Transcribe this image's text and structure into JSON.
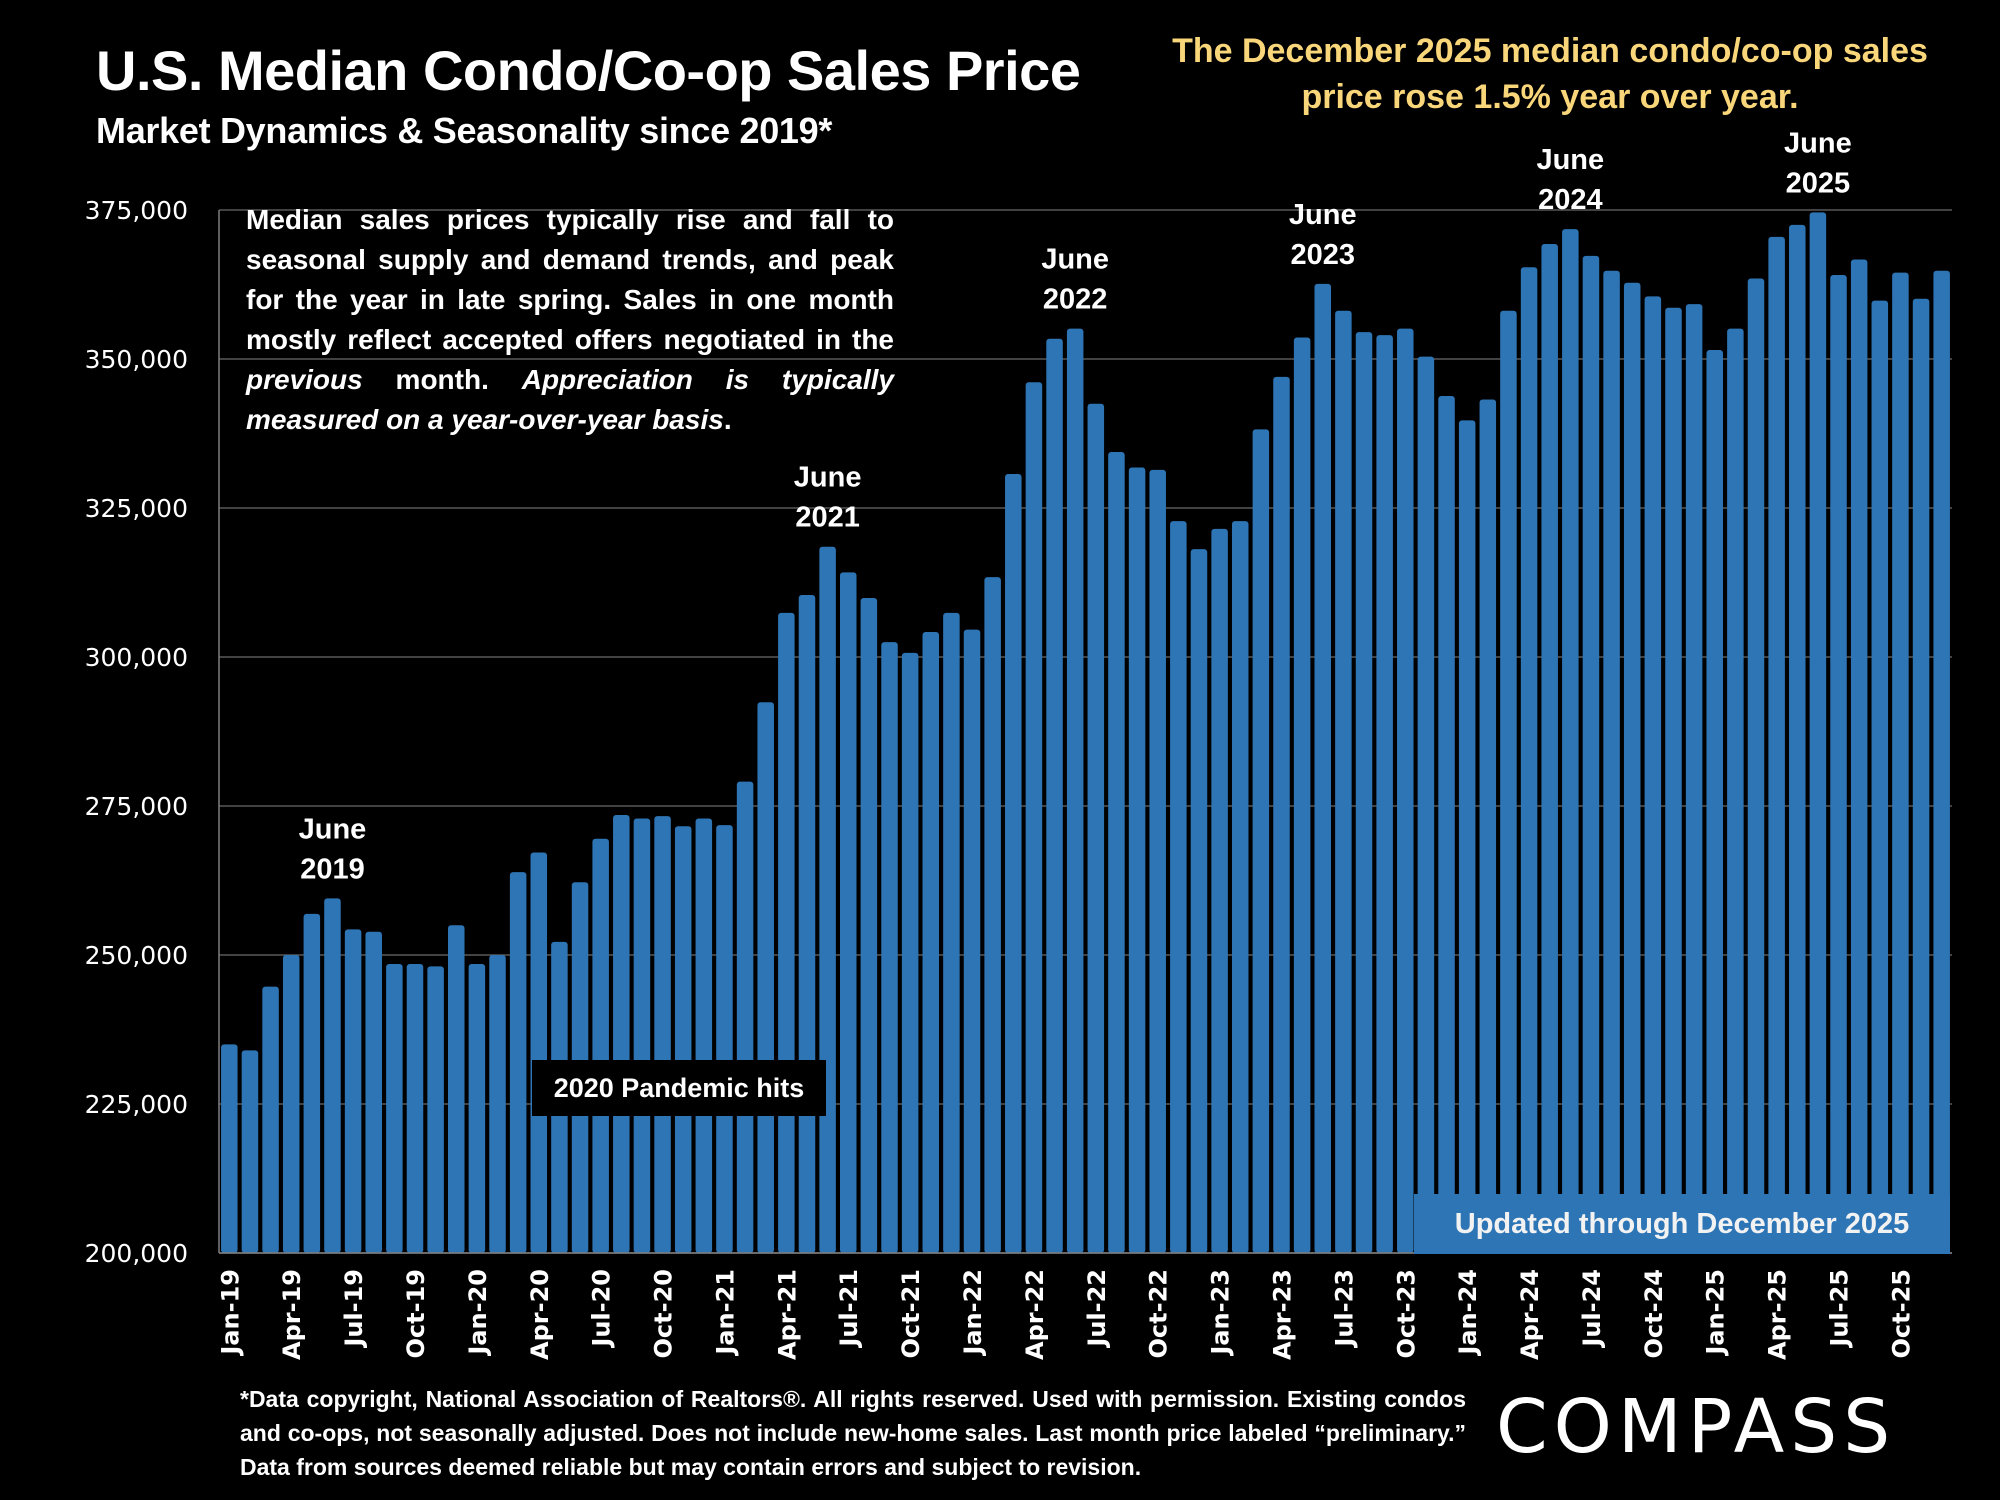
{
  "header": {
    "title": "U.S. Median Condo/Co-op Sales Price",
    "subtitle": "Market Dynamics & Seasonality since 2019*",
    "headline": "The December 2025 median condo/co-op sales price rose 1.5% year over year."
  },
  "explainer": {
    "part1": "Median sales prices typically rise and fall to seasonal supply and demand trends, and peak for the year in late spring. Sales in one month mostly reflect accepted offers negotiated in the ",
    "italic1": "previous",
    "part2": " month. ",
    "italic2": "Appreciation is typically measured on a year-over-year basis",
    "part3": "."
  },
  "callouts": {
    "pandemic": "2020 Pandemic hits",
    "updated": "Updated through December 2025"
  },
  "footnote": "*Data copyright, National Association of Realtors®. All rights reserved. Used with permission. Existing condos and co-ops, not seasonally adjusted. Does not include new-home sales. Last month price labeled “preliminary.” Data from sources deemed reliable but may contain errors and subject to revision.",
  "brand": {
    "logo_text": "COMPASS"
  },
  "colors": {
    "bar": "#2e75b6",
    "headline": "#f9d67a",
    "background": "#000000",
    "grid": "#595959"
  },
  "chart_data": {
    "type": "bar",
    "title": "U.S. Median Condo/Co-op Sales Price",
    "xlabel": "",
    "ylabel": "",
    "ylim": [
      200000,
      375000
    ],
    "yticks": [
      200000,
      225000,
      250000,
      275000,
      300000,
      325000,
      350000,
      375000
    ],
    "ytick_labels": [
      "200,000",
      "225,000",
      "250,000",
      "275,000",
      "300,000",
      "325,000",
      "350,000",
      "375,000"
    ],
    "grid": true,
    "categories": [
      "Jan-19",
      "Feb-19",
      "Mar-19",
      "Apr-19",
      "May-19",
      "Jun-19",
      "Jul-19",
      "Aug-19",
      "Sep-19",
      "Oct-19",
      "Nov-19",
      "Dec-19",
      "Jan-20",
      "Feb-20",
      "Mar-20",
      "Apr-20",
      "May-20",
      "Jun-20",
      "Jul-20",
      "Aug-20",
      "Sep-20",
      "Oct-20",
      "Nov-20",
      "Dec-20",
      "Jan-21",
      "Feb-21",
      "Mar-21",
      "Apr-21",
      "May-21",
      "Jun-21",
      "Jul-21",
      "Aug-21",
      "Sep-21",
      "Oct-21",
      "Nov-21",
      "Dec-21",
      "Jan-22",
      "Feb-22",
      "Mar-22",
      "Apr-22",
      "May-22",
      "Jun-22",
      "Jul-22",
      "Aug-22",
      "Sep-22",
      "Oct-22",
      "Nov-22",
      "Dec-22",
      "Jan-23",
      "Feb-23",
      "Mar-23",
      "Apr-23",
      "May-23",
      "Jun-23",
      "Jul-23",
      "Aug-23",
      "Sep-23",
      "Oct-23",
      "Nov-23",
      "Dec-23",
      "Jan-24",
      "Feb-24",
      "Mar-24",
      "Apr-24",
      "May-24",
      "Jun-24",
      "Jul-24",
      "Aug-24",
      "Sep-24",
      "Oct-24",
      "Nov-24",
      "Dec-24",
      "Jan-25",
      "Feb-25",
      "Mar-25",
      "Apr-25",
      "May-25",
      "Jun-25",
      "Jul-25",
      "Aug-25",
      "Sep-25",
      "Oct-25",
      "Nov-25",
      "Dec-25"
    ],
    "series": [
      {
        "name": "Median Condo/Co-op Sales Price",
        "values": [
          235000,
          234000,
          244700,
          250000,
          256900,
          259500,
          254300,
          253900,
          248500,
          248500,
          248100,
          255000,
          248500,
          250000,
          263900,
          267200,
          252200,
          262200,
          269500,
          273500,
          272900,
          273300,
          271600,
          272900,
          271800,
          279100,
          292400,
          307400,
          310400,
          318500,
          314200,
          309900,
          302500,
          300700,
          304200,
          307400,
          304600,
          313400,
          330700,
          346100,
          353400,
          355100,
          342500,
          334400,
          331800,
          331400,
          322800,
          318100,
          321500,
          322800,
          338200,
          347000,
          353600,
          362600,
          358100,
          354500,
          354000,
          355100,
          350400,
          343800,
          339700,
          343200,
          358100,
          365400,
          369300,
          371800,
          367300,
          364800,
          362800,
          360500,
          358600,
          359200,
          351500,
          355100,
          363500,
          370500,
          372500,
          374600,
          364100,
          366700,
          359800,
          364500,
          360100,
          364800
        ]
      }
    ],
    "xtick_labels_shown": [
      "Jan-19",
      "Apr-19",
      "Jul-19",
      "Oct-19",
      "Jan-20",
      "Apr-20",
      "Jul-20",
      "Oct-20",
      "Jan-21",
      "Apr-21",
      "Jul-21",
      "Oct-21",
      "Jan-22",
      "Apr-22",
      "Jul-22",
      "Oct-22",
      "Jan-23",
      "Apr-23",
      "Jul-23",
      "Oct-23",
      "Jan-24",
      "Apr-24",
      "Jul-24",
      "Oct-24",
      "Jan-25",
      "Apr-25",
      "Jul-25",
      "Oct-25"
    ],
    "annotations": [
      {
        "category": "Jun-19",
        "lines": [
          "June",
          "2019"
        ]
      },
      {
        "category": "Jun-21",
        "lines": [
          "June",
          "2021"
        ]
      },
      {
        "category": "Jun-22",
        "lines": [
          "June",
          "2022"
        ]
      },
      {
        "category": "Jun-23",
        "lines": [
          "June",
          "2023"
        ]
      },
      {
        "category": "Jun-24",
        "lines": [
          "June",
          "2024"
        ]
      },
      {
        "category": "Jun-25",
        "lines": [
          "June",
          "2025"
        ]
      }
    ],
    "legend": "none"
  }
}
